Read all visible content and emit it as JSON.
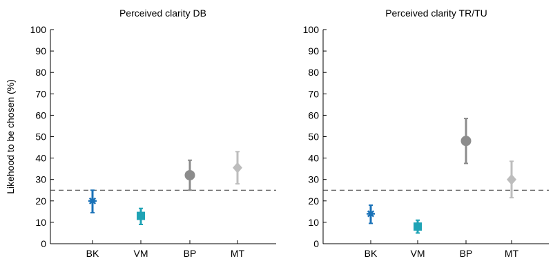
{
  "chart_data": [
    {
      "type": "scatter",
      "title": "Perceived clarity DB",
      "xlabel": "",
      "ylabel": "Likehood to be chosen (%)",
      "ylim": [
        0,
        100
      ],
      "yticks": [
        "0",
        "10",
        "20",
        "30",
        "40",
        "50",
        "60",
        "70",
        "80",
        "90",
        "100"
      ],
      "categories": [
        "BK",
        "VM",
        "BP",
        "MT"
      ],
      "reference_line": 25,
      "points": [
        {
          "category": "BK",
          "y": 20,
          "low": 14.5,
          "high": 25,
          "marker": "asterisk",
          "color": "#1a72b8"
        },
        {
          "category": "VM",
          "y": 13,
          "low": 9,
          "high": 16.5,
          "marker": "square",
          "color": "#1fa3b5"
        },
        {
          "category": "BP",
          "y": 32,
          "low": 25,
          "high": 39,
          "marker": "circle",
          "color": "#8c8c8c"
        },
        {
          "category": "MT",
          "y": 35.5,
          "low": 28,
          "high": 43,
          "marker": "diamond",
          "color": "#bdbdbd"
        }
      ]
    },
    {
      "type": "scatter",
      "title": "Perceived clarity TR/TU",
      "xlabel": "",
      "ylabel": "",
      "ylim": [
        0,
        100
      ],
      "yticks": [
        "0",
        "10",
        "20",
        "30",
        "40",
        "50",
        "60",
        "70",
        "80",
        "90",
        "100"
      ],
      "categories": [
        "BK",
        "VM",
        "BP",
        "MT"
      ],
      "reference_line": 25,
      "points": [
        {
          "category": "BK",
          "y": 14,
          "low": 9.5,
          "high": 18,
          "marker": "asterisk",
          "color": "#1a72b8"
        },
        {
          "category": "VM",
          "y": 8,
          "low": 5,
          "high": 11,
          "marker": "square",
          "color": "#1fa3b5"
        },
        {
          "category": "BP",
          "y": 48,
          "low": 37.5,
          "high": 58.5,
          "marker": "circle",
          "color": "#8c8c8c"
        },
        {
          "category": "MT",
          "y": 30,
          "low": 21.5,
          "high": 38.5,
          "marker": "diamond",
          "color": "#bdbdbd"
        }
      ]
    }
  ]
}
